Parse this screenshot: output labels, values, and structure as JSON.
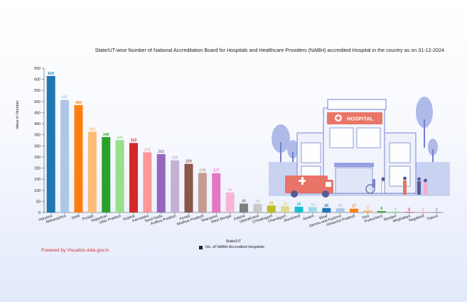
{
  "page": {
    "credit": "Powered by Visualize data.gov.in"
  },
  "chart_data": {
    "type": "bar",
    "title": "State/UT-wise Number of National Accreditation Board for Hospitals and Healthcare Providers (NABH) accredited Hospital in the country as on 31-12-2024",
    "xlabel": "State/UT",
    "ylabel": "Value in Number",
    "ylim": [
      0,
      650
    ],
    "yticks": [
      0,
      50,
      100,
      150,
      200,
      250,
      300,
      350,
      400,
      450,
      500,
      550,
      600,
      650
    ],
    "grid": false,
    "legend_position": "bottom",
    "series": [
      {
        "name": "No. of NABH Accredited Hospitals",
        "values": [
          615,
          507,
          484,
          364,
          340,
          326,
          313,
          271,
          263,
          235,
          219,
          178,
          177,
          90,
          40,
          38,
          31,
          28,
          26,
          24,
          20,
          19,
          17,
          9,
          6,
          4,
          2,
          2,
          1
        ],
        "data_labels": [
          "615",
          "507",
          "484",
          "364",
          "340",
          "326",
          "313",
          "271",
          "263",
          "235",
          "219",
          "178",
          "177",
          "90",
          "40",
          "38",
          "31",
          "28",
          "26",
          "24",
          "20",
          "19",
          "17",
          "9",
          "6",
          "4",
          "2",
          "2",
          "1"
        ]
      }
    ],
    "categories": [
      "Haryana",
      "Maharashtra",
      "Delhi",
      "Punjab",
      "Rajasthan",
      "Uttar Pradesh",
      "Gujarat",
      "Karnataka",
      "Tamil Nadu",
      "Andhra Pradesh",
      "Kerala",
      "Madhya Pradesh",
      "Telangana",
      "West Bengal",
      "Odisha",
      "Uttarakhand",
      "Chhattisgarh",
      "Chandigarh",
      "Jharkhand",
      "Assam",
      "Bihar",
      "Jammu and Kashmir",
      "Himachal Pradesh",
      "Goa",
      "Puducherry",
      "Manipur",
      "Meghalaya",
      "Nagaland",
      "Tripura"
    ],
    "colors": [
      "#1f77b4",
      "#aec7e8",
      "#ff7f0e",
      "#ffbb78",
      "#2ca02c",
      "#98df8a",
      "#d62728",
      "#ff9896",
      "#9467bd",
      "#c5b0d5",
      "#8c564b",
      "#c49c94",
      "#e377c2",
      "#f7b6d2",
      "#7f7f7f",
      "#c7c7c7",
      "#bcbd22",
      "#dbdb8d",
      "#17becf",
      "#9edae5",
      "#1f77b4",
      "#aec7e8",
      "#ff7f0e",
      "#ffbb78",
      "#2ca02c",
      "#98df8a",
      "#d62728",
      "#ff9896",
      "#9467bd"
    ]
  }
}
